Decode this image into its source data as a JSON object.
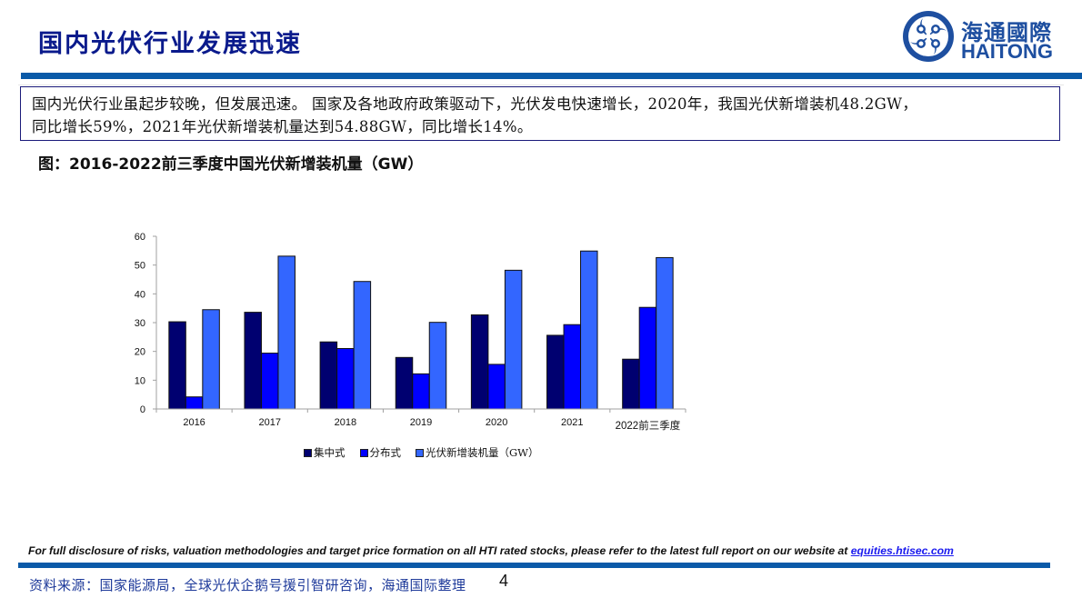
{
  "header": {
    "title": "国内光伏行业发展迅速",
    "logo": {
      "cn": "海通國際",
      "en": "HAITONG",
      "icon": "haitong-logo-icon"
    }
  },
  "summary": {
    "line1": "国内光伏行业虽起步较晚，但发展迅速。 国家及各地政府政策驱动下，光伏发电快速增长，2020年，我国光伏新增装机48.2GW，",
    "line2": "同比增长59%，2021年光伏新增装机量达到54.88GW，同比增长14%。"
  },
  "figure": {
    "caption": "图：2016-2022前三季度中国光伏新增装机量（GW）"
  },
  "colors": {
    "title": "#0a1a8c",
    "rule": "#0a5aa8",
    "series_centralized": "#000070",
    "series_distributed": "#0000ff",
    "series_total": "#3366ff"
  },
  "chart_data": {
    "type": "bar",
    "title": "2016-2022前三季度中国光伏新增装机量（GW）",
    "xlabel": "",
    "ylabel": "",
    "ylim": [
      0,
      60
    ],
    "yticks": [
      0,
      10,
      20,
      30,
      40,
      50,
      60
    ],
    "grid": false,
    "legend_position": "bottom",
    "categories": [
      "2016",
      "2017",
      "2018",
      "2019",
      "2020",
      "2021",
      "2022前三季度"
    ],
    "series": [
      {
        "name": "集中式",
        "color": "#000070",
        "values": [
          30.3,
          33.6,
          23.3,
          17.9,
          32.7,
          25.6,
          17.3
        ]
      },
      {
        "name": "分布式",
        "color": "#0000ff",
        "values": [
          4.2,
          19.4,
          21.0,
          12.2,
          15.5,
          29.3,
          35.3
        ]
      },
      {
        "name": "光伏新增装机量（GW）",
        "color": "#3366ff",
        "values": [
          34.5,
          53.1,
          44.3,
          30.1,
          48.2,
          54.88,
          52.6
        ]
      }
    ]
  },
  "legend": {
    "items": [
      "集中式",
      "分布式",
      "光伏新增装机量（GW）"
    ]
  },
  "footer": {
    "disclosure_prefix": "For full disclosure of risks, valuation methodologies and target price formation on all HTI rated stocks, please refer to the latest full report on our website at ",
    "disclosure_link": "equities.htisec.com",
    "source": "资料来源：国家能源局，全球光伏企鹅号援引智研咨询，海通国际整理",
    "page_number": "4"
  }
}
